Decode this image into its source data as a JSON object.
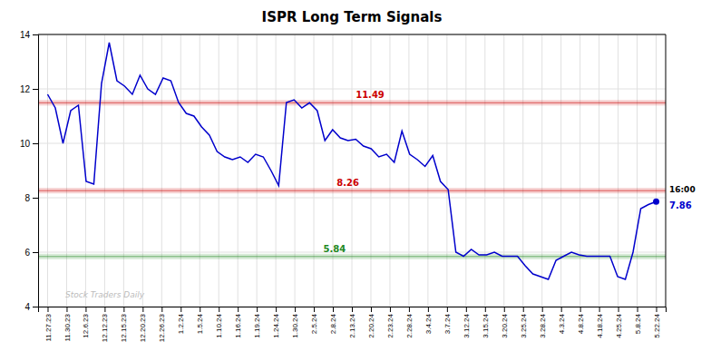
{
  "chart_data": {
    "type": "line",
    "title": "ISPR Long Term Signals",
    "color": "#0000cc",
    "grid": true,
    "xlim": [
      -0.5,
      32.5
    ],
    "xticks": [
      {
        "value": 0,
        "label": "11.27.23"
      },
      {
        "value": 1,
        "label": "11.30.23"
      },
      {
        "value": 2,
        "label": "12.6.23"
      },
      {
        "value": 3,
        "label": "12.12.23"
      },
      {
        "value": 4,
        "label": "12.15.23"
      },
      {
        "value": 5,
        "label": "12.20.23"
      },
      {
        "value": 6,
        "label": "12.26.23"
      },
      {
        "value": 7,
        "label": "1.2.24"
      },
      {
        "value": 8,
        "label": "1.5.24"
      },
      {
        "value": 9,
        "label": "1.10.24"
      },
      {
        "value": 10,
        "label": "1.16.24"
      },
      {
        "value": 11,
        "label": "1.19.24"
      },
      {
        "value": 12,
        "label": "1.24.24"
      },
      {
        "value": 13,
        "label": "1.30.24"
      },
      {
        "value": 14,
        "label": "2.5.24"
      },
      {
        "value": 15,
        "label": "2.8.24"
      },
      {
        "value": 16,
        "label": "2.13.24"
      },
      {
        "value": 17,
        "label": "2.20.24"
      },
      {
        "value": 18,
        "label": "2.23.24"
      },
      {
        "value": 19,
        "label": "2.28.24"
      },
      {
        "value": 20,
        "label": "3.4.24"
      },
      {
        "value": 21,
        "label": "3.7.24"
      },
      {
        "value": 22,
        "label": "3.12.24"
      },
      {
        "value": 23,
        "label": "3.15.24"
      },
      {
        "value": 24,
        "label": "3.20.24"
      },
      {
        "value": 25,
        "label": "3.25.24"
      },
      {
        "value": 26,
        "label": "3.28.24"
      },
      {
        "value": 27,
        "label": "4.3.24"
      },
      {
        "value": 28,
        "label": "4.8.24"
      },
      {
        "value": 29,
        "label": "4.18.24"
      },
      {
        "value": 30,
        "label": "4.25.24"
      },
      {
        "value": 31,
        "label": "5.8.24"
      },
      {
        "value": 32,
        "label": "5.22.24"
      }
    ],
    "ylim": [
      4,
      14
    ],
    "yticks": [
      4,
      6,
      8,
      10,
      12,
      14
    ],
    "values": [
      11.8,
      11.3,
      10.0,
      11.2,
      11.4,
      8.6,
      8.5,
      12.2,
      13.7,
      12.3,
      12.1,
      11.8,
      12.5,
      12.0,
      11.8,
      12.4,
      12.3,
      11.5,
      11.1,
      11.0,
      10.6,
      10.3,
      9.7,
      9.5,
      9.4,
      9.5,
      9.3,
      9.6,
      9.5,
      9.0,
      8.45,
      11.5,
      11.6,
      11.3,
      11.49,
      11.2,
      10.1,
      10.5,
      10.2,
      10.1,
      10.15,
      9.9,
      9.8,
      9.5,
      9.6,
      9.3,
      10.45,
      9.6,
      9.4,
      9.15,
      9.55,
      8.6,
      8.3,
      6.0,
      5.85,
      6.1,
      5.9,
      5.9,
      6.0,
      5.85,
      5.85,
      5.85,
      5.5,
      5.2,
      5.1,
      5.0,
      5.7,
      5.85,
      6.0,
      5.9,
      5.85,
      5.85,
      5.85,
      5.85,
      5.1,
      5.0,
      6.0,
      7.6,
      7.75,
      7.86
    ],
    "bands": [
      {
        "value": 11.49,
        "label": "11.49",
        "color": "#cc0000"
      },
      {
        "value": 8.26,
        "label": "8.26",
        "color": "#cc0000"
      },
      {
        "value": 5.84,
        "label": "5.84",
        "color": "#228822"
      }
    ],
    "end_time": "16:00",
    "end_label": "7.86",
    "watermark": "Stock Traders Daily"
  }
}
